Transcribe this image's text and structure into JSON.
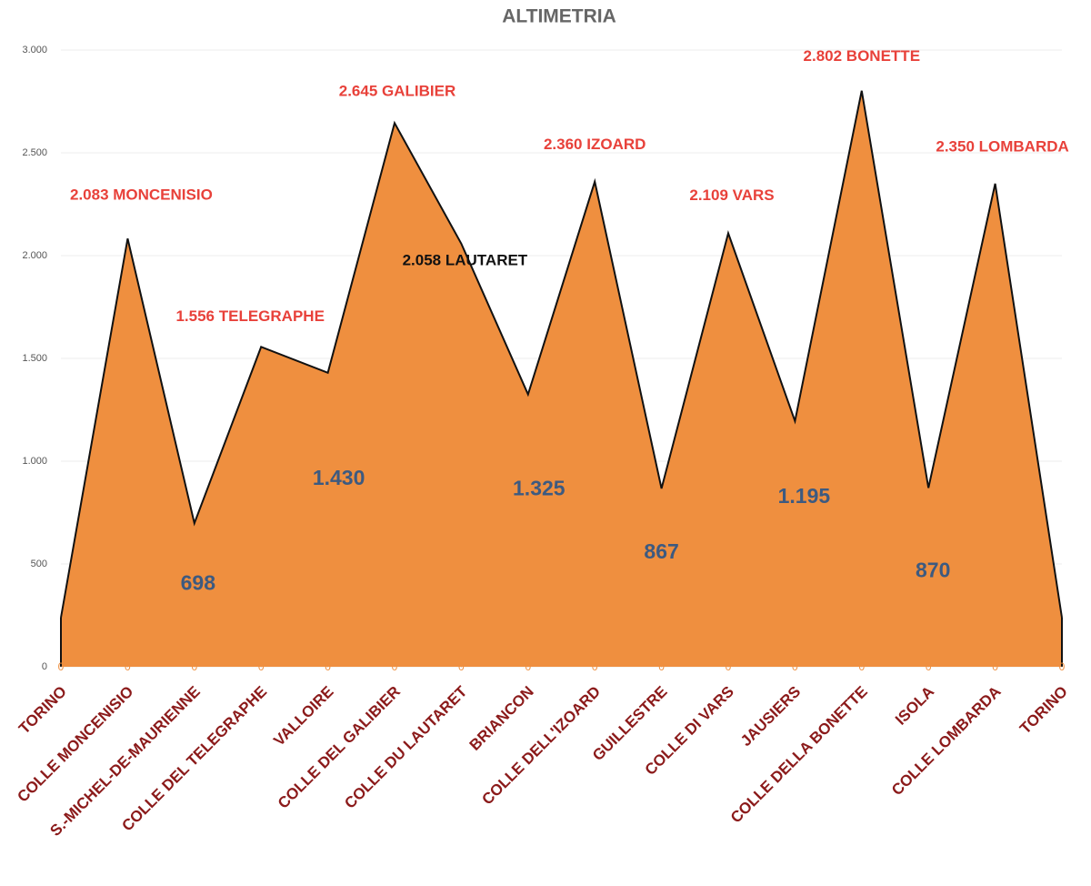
{
  "chart_data": {
    "type": "area",
    "title": "ALTIMETRIA",
    "categories": [
      "TORINO",
      "COLLE MONCENISIO",
      "S.-MICHEL-DE-MAURIENNE",
      "COLLE DEL TELEGRAPHE",
      "VALLOIRE",
      "COLLE DEL GALIBIER",
      "COLLE DU LAUTARET",
      "BRIANCON",
      "COLLE DELL'IZOARD",
      "GUILLESTRE",
      "COLLE DI VARS",
      "JAUSIERS",
      "COLLE DELLA BONETTE",
      "ISOLA",
      "COLLE LOMBARDA",
      "TORINO"
    ],
    "series": [
      {
        "color": "#ef8f3f",
        "values": [
          239,
          2083,
          698,
          1556,
          1430,
          2645,
          2058,
          1325,
          2360,
          867,
          2109,
          1195,
          2802,
          870,
          2350,
          239
        ],
        "value_labels": [
          null,
          "2.083 MONCENISIO",
          "698",
          "1.556 TELEGRAPHE",
          "1.430",
          "2.645 GALIBIER",
          "2.058 LAUTARET",
          "1.325",
          "2.360 IZOARD",
          "867",
          "2.109 VARS",
          "1.195",
          "2.802 BONETTE",
          "870",
          "2.350 LOMBARDA",
          null
        ],
        "label_colors": [
          null,
          "#e8413a",
          "#3d5a80",
          "#e8413a",
          "#3d5a80",
          "#e8413a",
          "#111111",
          "#3d5a80",
          "#e8413a",
          "#3d5a80",
          "#e8413a",
          "#3d5a80",
          "#e8413a",
          "#3d5a80",
          "#e8413a",
          null
        ]
      },
      {
        "color": "#ef8f3f",
        "values": [
          0,
          0,
          0,
          0,
          0,
          0,
          0,
          0,
          0,
          0,
          0,
          0,
          0,
          0,
          0,
          0
        ]
      }
    ],
    "ylim": [
      0,
      3000
    ],
    "yticks": [
      0,
      500,
      {
        "value": 1000,
        "label": "1.000"
      },
      {
        "value": 1500,
        "label": "1.500"
      },
      {
        "value": 2000,
        "label": "2.000"
      },
      {
        "value": 2500,
        "label": "2.500"
      },
      {
        "value": 3000,
        "label": "3.000"
      }
    ],
    "grid": true
  }
}
